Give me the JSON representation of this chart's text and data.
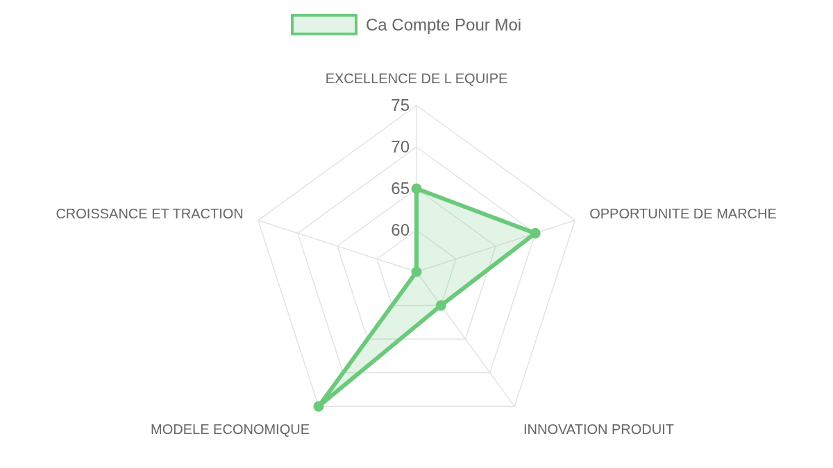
{
  "chart_data": {
    "type": "radar",
    "categories": [
      "EXCELLENCE DE L EQUIPE",
      "OPPORTUNITE DE MARCHE",
      "INNOVATION PRODUIT",
      "MODELE ECONOMIQUE",
      "CROISSANCE ET TRACTION"
    ],
    "series": [
      {
        "name": "Ca Compte Pour Moi",
        "color": "#6cc97c",
        "values": [
          65,
          70,
          60,
          75,
          55
        ]
      }
    ],
    "ylim": [
      55,
      75
    ],
    "yticks": [
      60,
      65,
      70,
      75
    ],
    "grid": true,
    "legend": "top",
    "marker": "circle",
    "line_style": "solid"
  }
}
